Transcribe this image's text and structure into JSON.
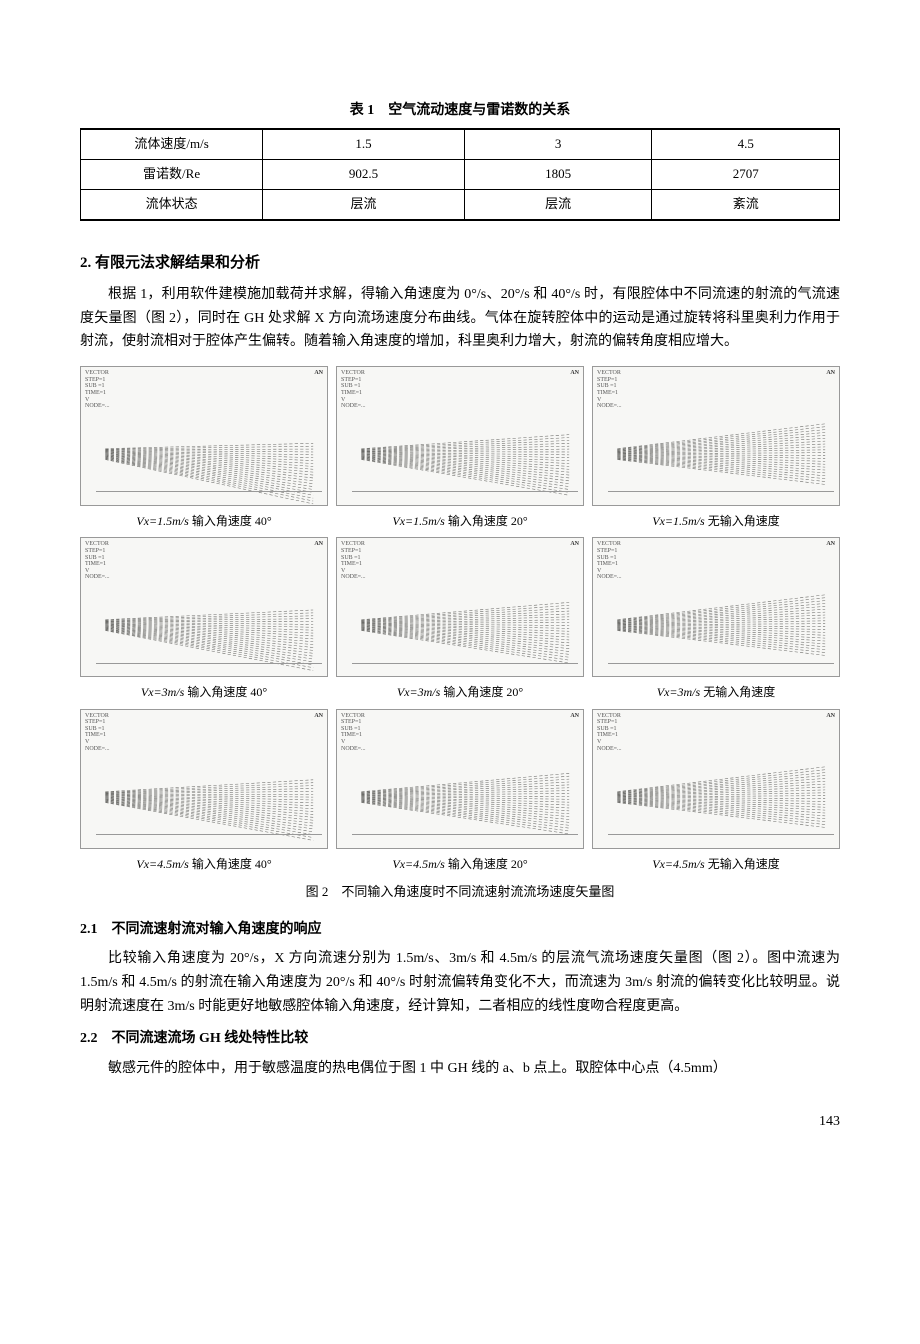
{
  "table1": {
    "caption": "表 1　空气流动速度与雷诺数的关系",
    "rows": [
      [
        "流体速度/m/s",
        "1.5",
        "3",
        "4.5"
      ],
      [
        "雷诺数/Re",
        "902.5",
        "1805",
        "2707"
      ],
      [
        "流体状态",
        "层流",
        "层流",
        "紊流"
      ]
    ]
  },
  "section2": {
    "heading": "2. 有限元法求解结果和分析",
    "para": "根据 1，利用软件建模施加载荷并求解，得输入角速度为 0°/s、20°/s 和 40°/s 时，有限腔体中不同流速的射流的气流速度矢量图（图 2），同时在 GH 处求解 X 方向流场速度分布曲线。气体在旋转腔体中的运动是通过旋转将科里奥利力作用于射流，使射流相对于腔体产生偏转。随着输入角速度的增加，科里奥利力增大，射流的偏转角度相应增大。"
  },
  "figure2": {
    "caption": "图 2　不同输入角速度时不同流速射流流场速度矢量图",
    "panel_tag_tr": "AN",
    "rows": [
      {
        "vx": "1.5m/s",
        "captions": [
          "Vx=1.5m/s 输入角速度 40°",
          "Vx=1.5m/s 输入角速度 20°",
          "Vx=1.5m/s 无输入角速度"
        ],
        "deflect": [
          18,
          10,
          0
        ]
      },
      {
        "vx": "3m/s",
        "captions": [
          "Vx=3m/s 输入角速度 40°",
          "Vx=3m/s 输入角速度 20°",
          "Vx=3m/s 无输入角速度"
        ],
        "deflect": [
          14,
          7,
          0
        ]
      },
      {
        "vx": "4.5m/s",
        "captions": [
          "Vx=4.5m/s 输入角速度 40°",
          "Vx=4.5m/s 输入角速度 20°",
          "Vx=4.5m/s 无输入角速度"
        ],
        "deflect": [
          12,
          6,
          0
        ]
      }
    ],
    "axis_ticks": [
      "",
      "",
      "",
      "",
      "",
      ""
    ],
    "panel_tl_text": "VECTOR\nSTEP=1\nSUB =1\nTIME=1\nV\nNODE=..."
  },
  "section2_1": {
    "heading": "2.1　不同流速射流对输入角速度的响应",
    "para": "比较输入角速度为 20°/s，X 方向流速分别为 1.5m/s、3m/s 和 4.5m/s 的层流气流场速度矢量图（图 2）。图中流速为 1.5m/s 和 4.5m/s 的射流在输入角速度为 20°/s 和 40°/s 时射流偏转角变化不大，而流速为 3m/s 射流的偏转变化比较明显。说明射流速度在 3m/s 时能更好地敏感腔体输入角速度，经计算知，二者相应的线性度吻合程度更高。"
  },
  "section2_2": {
    "heading": "2.2　不同流速流场 GH 线处特性比较",
    "para": "敏感元件的腔体中，用于敏感温度的热电偶位于图 1 中 GH 线的 a、b 点上。取腔体中心点（4.5mm）"
  },
  "pageNumber": "143",
  "style": {
    "flow_line_color": "#6b6b68",
    "flow_line_count": 22,
    "flow_spread_deg": 28
  }
}
